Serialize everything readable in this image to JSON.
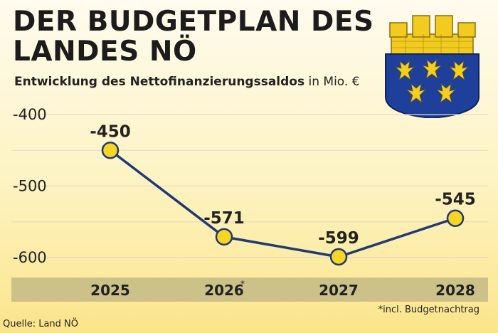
{
  "header": {
    "title_line1": "DER BUDGETPLAN DES",
    "title_line2": "LANDES NÖ",
    "subtitle_bold": "Entwicklung des Nettofinanzierungssaldos",
    "subtitle_unit": "in Mio. €"
  },
  "colors": {
    "line": "#1f3a75",
    "marker_fill": "#f6d623",
    "marker_stroke": "#1f3a75",
    "axis_band": "#ccc189",
    "grid": "#e3dcc0"
  },
  "chart_data": {
    "type": "line",
    "categories": [
      "2025",
      "2026",
      "2027",
      "2028"
    ],
    "category_markers": [
      "",
      "*",
      "",
      ""
    ],
    "series": [
      {
        "values": [
          -450,
          -571,
          -599,
          -545
        ]
      }
    ],
    "data_labels": [
      "-450",
      "-571",
      "-599",
      "-545"
    ],
    "yticks": [
      -400,
      -500,
      -600
    ],
    "ytick_labels": [
      "-400",
      "-500",
      "-600"
    ],
    "ylim": [
      -600,
      -400
    ],
    "grid": true,
    "xlabel": "",
    "ylabel": ""
  },
  "footnote": "*incl. Budgetnachtrag",
  "source": "Quelle: Land NÖ"
}
